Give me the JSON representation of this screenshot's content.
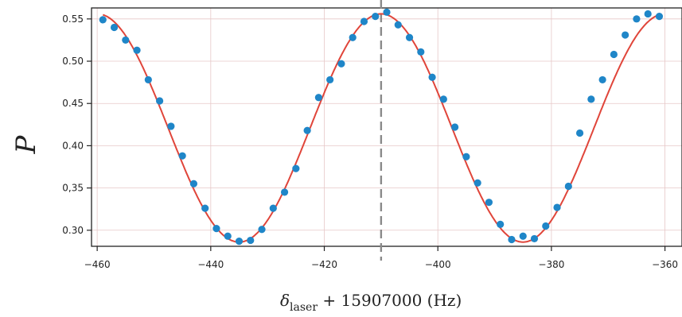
{
  "chart_data": {
    "type": "scatter",
    "xlabel": {
      "symbol": "δ",
      "subscript": "laser",
      "rest": " + 15907000 (Hz)"
    },
    "ylabel": "P",
    "xlim": [
      -461,
      -357
    ],
    "ylim": [
      0.281,
      0.563
    ],
    "xticks": [
      -460,
      -440,
      -420,
      -400,
      -380,
      -360
    ],
    "xtick_labels": [
      "−460",
      "−440",
      "−420",
      "−400",
      "−380",
      "−360"
    ],
    "yticks": [
      0.3,
      0.35,
      0.4,
      0.45,
      0.5,
      0.55
    ],
    "ytick_labels": [
      "0.30",
      "0,35",
      "0.40",
      "0.45",
      "0.50",
      "0.55"
    ],
    "grid": true,
    "marker_line_x": -410,
    "colors": {
      "points": "#1f86c8",
      "fit": "#e0453a",
      "marker_line": "#8a8a8a",
      "grid": "#e6c8c8"
    },
    "series": [
      {
        "kind": "data points",
        "x": [
          -459,
          -457,
          -455,
          -453,
          -451,
          -449,
          -447,
          -445,
          -443,
          -441,
          -439,
          -437,
          -435,
          -433,
          -431,
          -429,
          -427,
          -425,
          -423,
          -421,
          -419,
          -417,
          -415,
          -413,
          -411,
          -409,
          -407,
          -405,
          -403,
          -401,
          -399,
          -397,
          -395,
          -393,
          -391,
          -389,
          -387,
          -385,
          -383,
          -381,
          -379,
          -377,
          -375,
          -373,
          -371,
          -369,
          -367,
          -365,
          -363,
          -361
        ],
        "y": [
          0.549,
          0.54,
          0.525,
          0.513,
          0.478,
          0.453,
          0.423,
          0.388,
          0.355,
          0.326,
          0.302,
          0.293,
          0.287,
          0.288,
          0.301,
          0.326,
          0.345,
          0.373,
          0.418,
          0.457,
          0.478,
          0.497,
          0.528,
          0.547,
          0.553,
          0.558,
          0.543,
          0.528,
          0.511,
          0.481,
          0.455,
          0.422,
          0.387,
          0.356,
          0.333,
          0.307,
          0.289,
          0.293,
          0.29,
          0.305,
          0.327,
          0.352,
          0.415,
          0.455,
          0.478,
          0.508,
          0.531,
          0.55,
          0.556,
          0.553
        ]
      },
      {
        "kind": "fit curve",
        "model": "cosine",
        "center": 0.421,
        "amplitude": 0.135,
        "period": 50,
        "peak_x": -410
      }
    ]
  }
}
